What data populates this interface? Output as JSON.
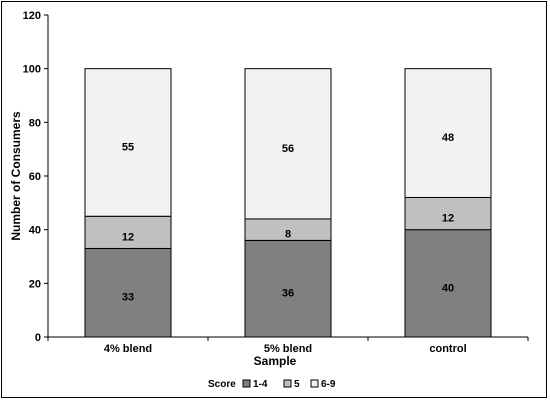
{
  "chart_data": {
    "type": "bar",
    "stacked": true,
    "categories": [
      "4% blend",
      "5% blend",
      "control"
    ],
    "series": [
      {
        "name": "1-4",
        "values": [
          33,
          36,
          40
        ],
        "color": "#808080"
      },
      {
        "name": "5",
        "values": [
          12,
          8,
          12
        ],
        "color": "#c0c0c0"
      },
      {
        "name": "6-9",
        "values": [
          55,
          56,
          48
        ],
        "color": "#f2f2f2"
      }
    ],
    "xlabel": "Sample",
    "ylabel": "Number of Consumers",
    "ylim": [
      0,
      120
    ],
    "yticks": [
      0,
      20,
      40,
      60,
      80,
      100,
      120
    ],
    "grid": false,
    "legend": {
      "title": "Score",
      "position": "bottom"
    }
  }
}
